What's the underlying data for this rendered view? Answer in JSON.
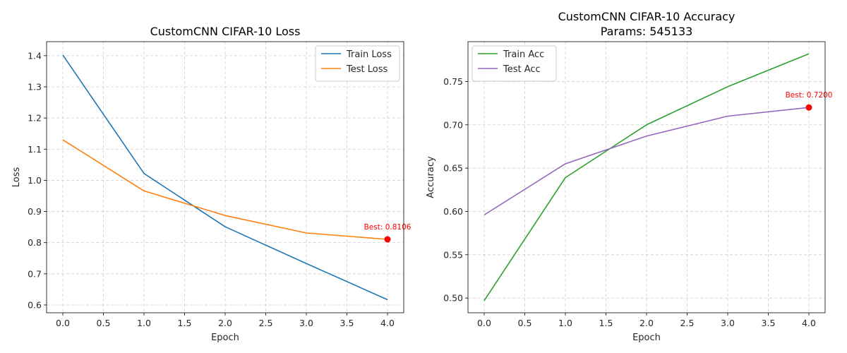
{
  "chart_data": [
    {
      "type": "line",
      "title": "CustomCNN CIFAR-10 Loss",
      "subtitle": "",
      "xlabel": "Epoch",
      "ylabel": "Loss",
      "x": [
        0,
        1,
        2,
        3,
        4
      ],
      "xlim": [
        -0.2,
        4.2
      ],
      "ylim": [
        0.575,
        1.445
      ],
      "xticks": [
        "0.0",
        "0.5",
        "1.0",
        "1.5",
        "2.0",
        "2.5",
        "3.0",
        "3.5",
        "4.0"
      ],
      "yticks": [
        "0.6",
        "0.7",
        "0.8",
        "0.9",
        "1.0",
        "1.1",
        "1.2",
        "1.3",
        "1.4"
      ],
      "grid": true,
      "legend_position": "top-right",
      "series": [
        {
          "name": "Train Loss",
          "color": "#1f77b4",
          "values": [
            1.402,
            1.022,
            0.851,
            0.733,
            0.617
          ]
        },
        {
          "name": "Test Loss",
          "color": "#ff7f0e",
          "values": [
            1.13,
            0.966,
            0.887,
            0.831,
            0.8106
          ]
        }
      ],
      "best_point": {
        "x": 4,
        "y": 0.8106,
        "label": "Best: 0.8106",
        "color": "#ff0000"
      }
    },
    {
      "type": "line",
      "title": "CustomCNN CIFAR-10 Accuracy",
      "subtitle": "Params: 545133",
      "xlabel": "Epoch",
      "ylabel": "Accuracy",
      "x": [
        0,
        1,
        2,
        3,
        4
      ],
      "xlim": [
        -0.2,
        4.2
      ],
      "ylim": [
        0.483,
        0.796
      ],
      "xticks": [
        "0.0",
        "0.5",
        "1.0",
        "1.5",
        "2.0",
        "2.5",
        "3.0",
        "3.5",
        "4.0"
      ],
      "yticks": [
        "0.50",
        "0.55",
        "0.60",
        "0.65",
        "0.70",
        "0.75"
      ],
      "grid": true,
      "legend_position": "top-left",
      "series": [
        {
          "name": "Train Acc",
          "color": "#2ca02c",
          "values": [
            0.497,
            0.639,
            0.7,
            0.744,
            0.782
          ]
        },
        {
          "name": "Test Acc",
          "color": "#9467bd",
          "values": [
            0.596,
            0.655,
            0.687,
            0.71,
            0.72
          ]
        }
      ],
      "best_point": {
        "x": 4,
        "y": 0.72,
        "label": "Best: 0.7200",
        "color": "#ff0000"
      }
    }
  ]
}
